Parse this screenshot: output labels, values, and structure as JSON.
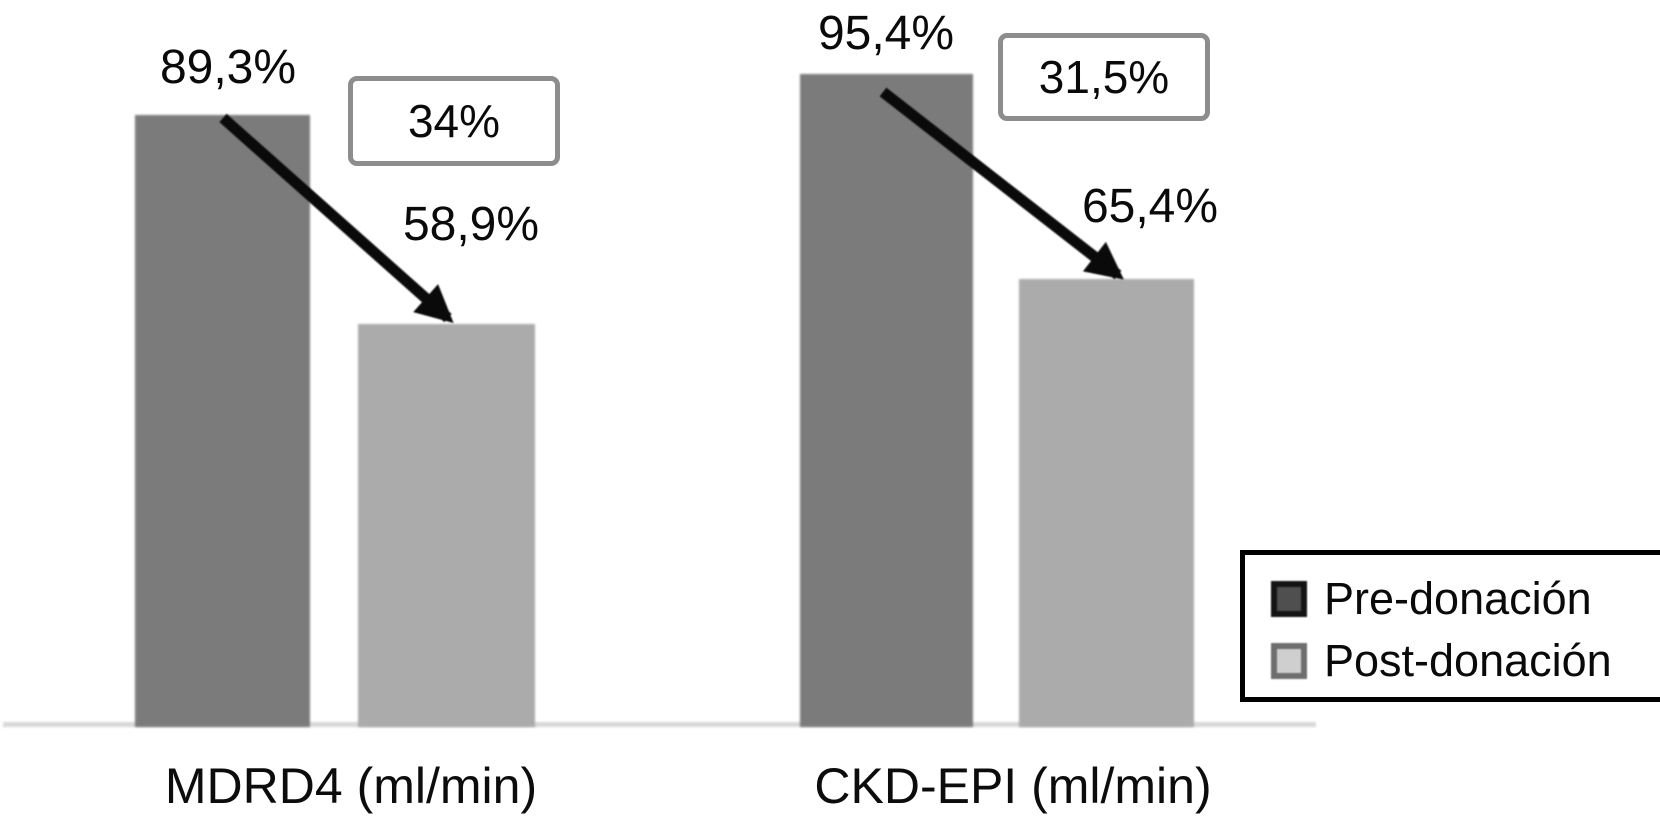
{
  "chart_data": {
    "type": "bar",
    "title": "",
    "categories": [
      "MDRD4 (ml/min)",
      "CKD-EPI (ml/min)"
    ],
    "series": [
      {
        "name": "Pre-donación",
        "color": "#7b7b7b",
        "legend_swatch_color": "#4f4f4f",
        "values": [
          89.3,
          95.4
        ],
        "value_labels": [
          "89,3%",
          "95,4%"
        ]
      },
      {
        "name": "Post-donación",
        "color": "#ababab",
        "legend_swatch_color": "#cfcfcf",
        "values": [
          58.9,
          65.4
        ],
        "value_labels": [
          "58,9%",
          "65,4%"
        ]
      }
    ],
    "drop_annotations": [
      {
        "category": "MDRD4 (ml/min)",
        "label": "34%"
      },
      {
        "category": "CKD-EPI (ml/min)",
        "label": "31,5%"
      }
    ],
    "ylim": [
      0,
      100
    ],
    "unit": "%",
    "grid": false,
    "y_axis_visible": false,
    "legend_position": "bottom-right",
    "annotation_style": "thick black arrow from top of Pre-donación bar down to top of Post-donación bar in each group"
  },
  "colors": {
    "background": "#ffffff",
    "axis_line": "#d8d8d8",
    "annotation_box_border": "#8d8d8d",
    "legend_border": "#000000",
    "arrow": "#0a0a0a",
    "text": "#0a0a0a"
  }
}
